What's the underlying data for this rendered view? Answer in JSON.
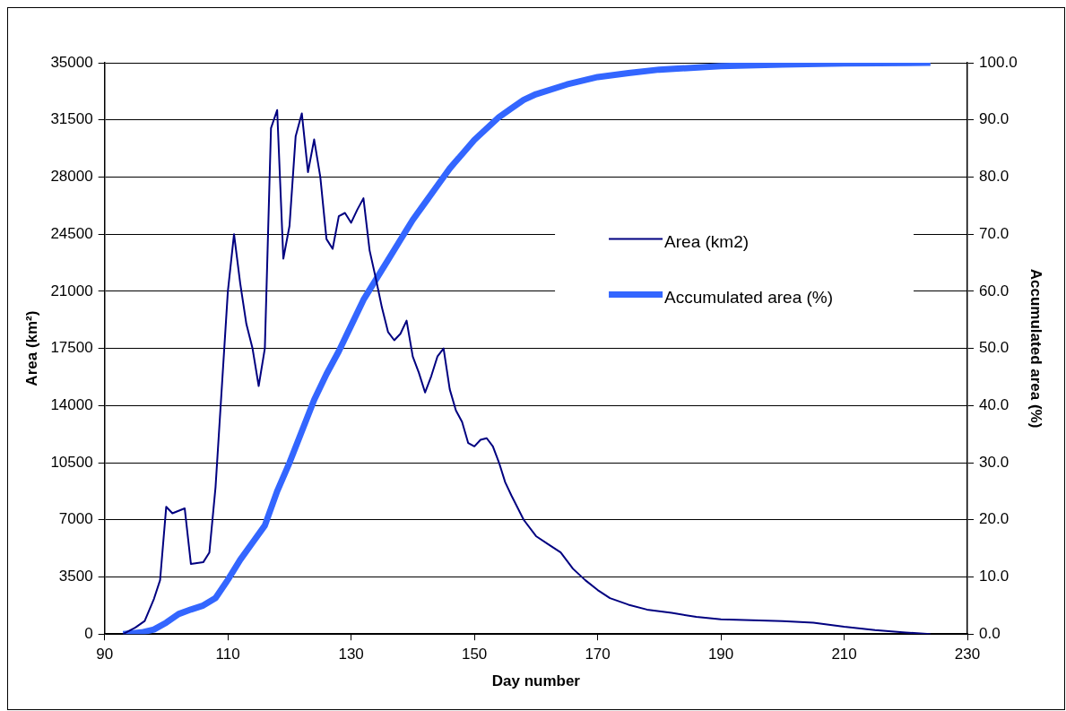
{
  "chart_data": {
    "type": "line",
    "xlabel": "Day number",
    "ylabel": "Area (km²)",
    "y2label": "Accumulated area (%)",
    "xlim": [
      90,
      230
    ],
    "xticks": [
      90,
      110,
      130,
      150,
      170,
      190,
      210,
      230
    ],
    "ylim": [
      0,
      35000
    ],
    "yticks": [
      0,
      3500,
      7000,
      10500,
      14000,
      17500,
      21000,
      24500,
      28000,
      31500,
      35000
    ],
    "y2lim": [
      0,
      100
    ],
    "y2ticks": [
      {
        "value": 0,
        "label": "0.0"
      },
      {
        "value": 10,
        "label": "10.0"
      },
      {
        "value": 20,
        "label": "20.0"
      },
      {
        "value": 30,
        "label": "30.0"
      },
      {
        "value": 40,
        "label": "40.0"
      },
      {
        "value": 50,
        "label": "50.0"
      },
      {
        "value": 60,
        "label": "60.0"
      },
      {
        "value": 70,
        "label": "70.0"
      },
      {
        "value": 80,
        "label": "80.0"
      },
      {
        "value": 90,
        "label": "90.0"
      },
      {
        "value": 100,
        "label": "100.0"
      }
    ],
    "grid": "y",
    "legend": "right",
    "marker": "none",
    "line_style": "solid",
    "series": [
      {
        "name": "Area (km2)",
        "color": "#000080",
        "x": [
          93,
          95,
          96.5,
          98,
          99,
          100,
          101,
          103,
          104,
          106,
          107,
          108,
          109,
          110,
          111,
          112,
          113,
          114,
          115,
          116,
          117,
          118,
          119,
          120,
          121,
          122,
          123,
          124,
          125,
          126,
          127,
          128,
          129,
          130,
          131,
          132,
          133,
          134,
          135,
          136,
          137,
          138,
          139,
          140,
          141,
          142,
          143,
          144,
          145,
          146,
          147,
          148,
          149,
          150,
          151,
          152,
          153,
          154,
          155,
          156,
          158,
          160,
          162,
          164,
          166,
          168,
          170,
          172,
          175,
          178,
          182,
          186,
          190,
          195,
          200,
          205,
          210,
          215,
          220,
          224
        ],
        "values": [
          0,
          400,
          800,
          2150,
          3300,
          7800,
          7400,
          7700,
          4300,
          4400,
          5000,
          9000,
          15000,
          21000,
          24500,
          21500,
          19000,
          17500,
          15200,
          17500,
          31000,
          32100,
          23000,
          25000,
          30500,
          31900,
          28300,
          30300,
          28000,
          24200,
          23600,
          25600,
          25800,
          25200,
          26000,
          26700,
          23500,
          21800,
          20000,
          18500,
          18000,
          18400,
          19200,
          17000,
          16000,
          14800,
          15800,
          17000,
          17500,
          15000,
          13700,
          13000,
          11700,
          11500,
          11900,
          12000,
          11500,
          10500,
          9300,
          8500,
          7000,
          6000,
          5500,
          5000,
          4000,
          3300,
          2700,
          2200,
          1800,
          1500,
          1300,
          1050,
          900,
          850,
          800,
          700,
          450,
          250,
          100,
          0
        ]
      },
      {
        "name": "Accumulated area (%)",
        "color": "#3366ff",
        "axis": "y2",
        "x": [
          93,
          96,
          98,
          100,
          102,
          104,
          106,
          108,
          110,
          112,
          114,
          116,
          118,
          120,
          122,
          124,
          126,
          128,
          130,
          132,
          134,
          136,
          138,
          140,
          142,
          144,
          146,
          148,
          150,
          152,
          154,
          156,
          158,
          160,
          165,
          170,
          175,
          180,
          190,
          200,
          210,
          224
        ],
        "values": [
          0,
          0.3,
          0.8,
          2,
          3.5,
          4.3,
          5,
          6.3,
          9.5,
          13,
          16,
          19,
          25,
          30,
          35.5,
          41,
          45.5,
          49.5,
          54,
          58.5,
          62,
          65.5,
          69,
          72.5,
          75.5,
          78.5,
          81.5,
          84,
          86.5,
          88.5,
          90.5,
          92,
          93.5,
          94.5,
          96.2,
          97.5,
          98.2,
          98.8,
          99.4,
          99.7,
          99.9,
          100
        ]
      }
    ]
  }
}
